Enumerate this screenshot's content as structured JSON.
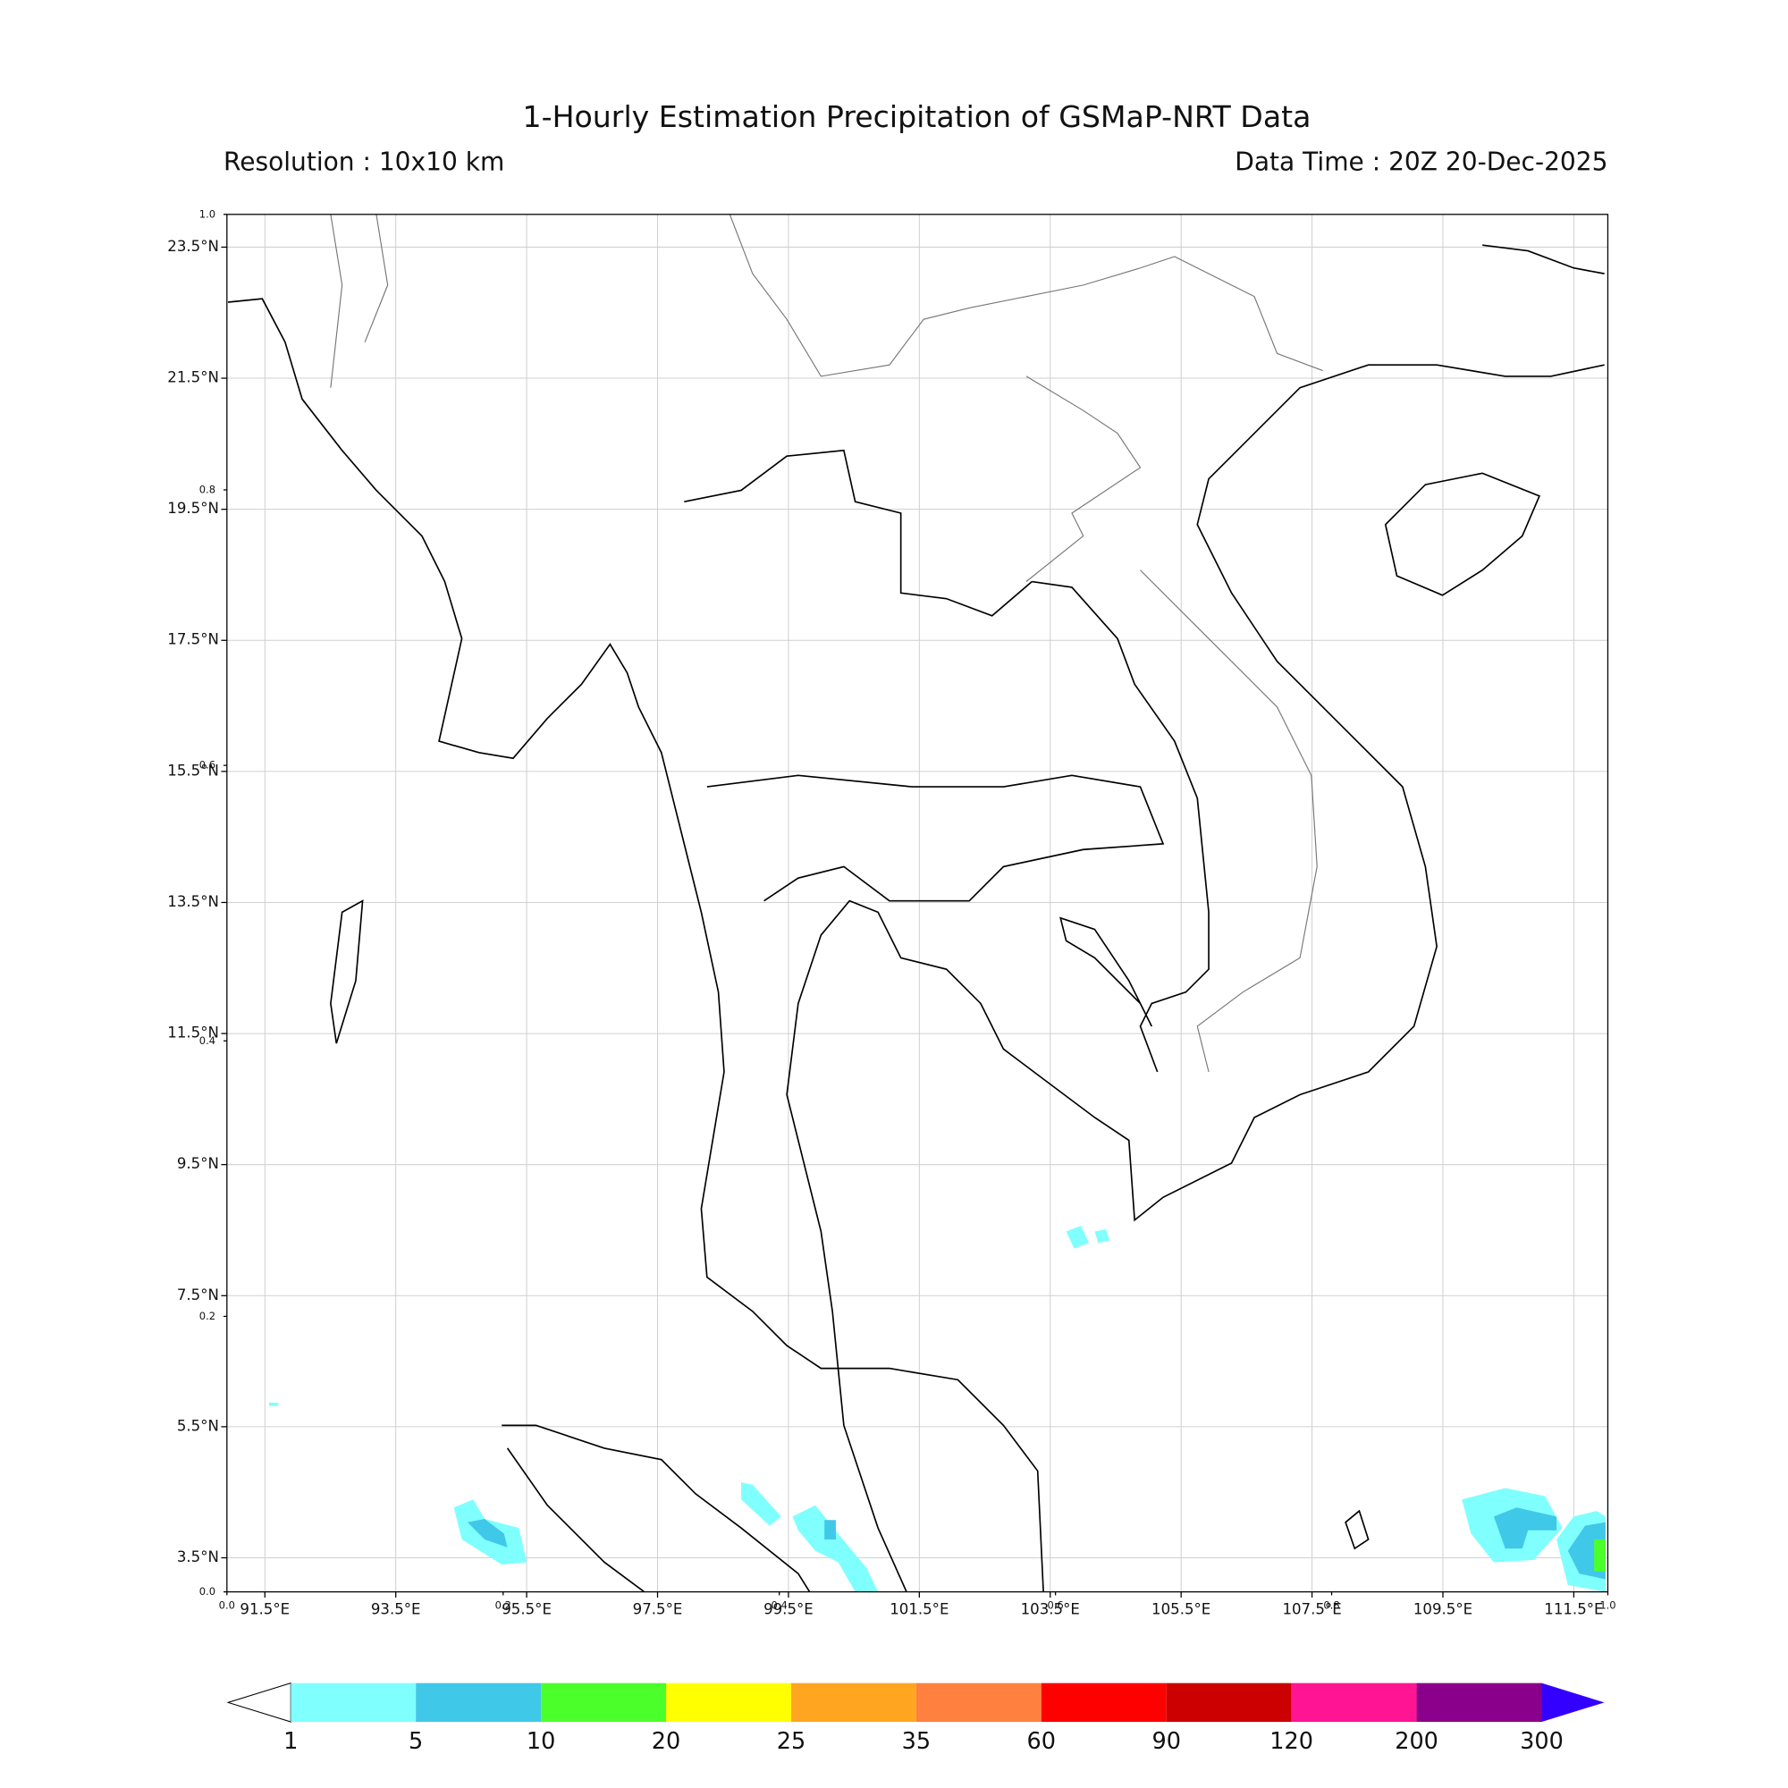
{
  "header": {
    "title": "1-Hourly Estimation Precipitation of GSMaP-NRT Data",
    "resolution": "Resolution : 10x10 km",
    "data_time": "Data Time : 20Z 20-Dec-2025"
  },
  "map": {
    "lon_range": [
      90.92,
      112.02
    ],
    "lat_range": [
      2.98,
      24.0
    ],
    "lon_ticks": [
      {
        "value": 91.5,
        "label": "91.5°E"
      },
      {
        "value": 93.5,
        "label": "93.5°E"
      },
      {
        "value": 95.5,
        "label": "95.5°E"
      },
      {
        "value": 97.5,
        "label": "97.5°E"
      },
      {
        "value": 99.5,
        "label": "99.5°E"
      },
      {
        "value": 101.5,
        "label": "101.5°E"
      },
      {
        "value": 103.5,
        "label": "103.5°E"
      },
      {
        "value": 105.5,
        "label": "105.5°E"
      },
      {
        "value": 107.5,
        "label": "107.5°E"
      },
      {
        "value": 109.5,
        "label": "109.5°E"
      },
      {
        "value": 111.5,
        "label": "111.5°E"
      }
    ],
    "lat_ticks": [
      {
        "value": 23.5,
        "label": "23.5°N"
      },
      {
        "value": 21.5,
        "label": "21.5°N"
      },
      {
        "value": 19.5,
        "label": "19.5°N"
      },
      {
        "value": 17.5,
        "label": "17.5°N"
      },
      {
        "value": 15.5,
        "label": "15.5°N"
      },
      {
        "value": 13.5,
        "label": "13.5°N"
      },
      {
        "value": 11.5,
        "label": "11.5°N"
      },
      {
        "value": 9.5,
        "label": "9.5°N"
      },
      {
        "value": 7.5,
        "label": "7.5°N"
      },
      {
        "value": 5.5,
        "label": "5.5°N"
      },
      {
        "value": 3.5,
        "label": "3.5°N"
      }
    ],
    "frame_ticks": [
      {
        "value": 0,
        "label": "0.0"
      },
      {
        "value": 0.2,
        "label": "0.2"
      },
      {
        "value": 0.4,
        "label": "0.4"
      },
      {
        "value": 0.6,
        "label": "0.6"
      },
      {
        "value": 0.8,
        "label": "0.8"
      },
      {
        "value": 1,
        "label": "1.0"
      }
    ]
  },
  "colorbar": {
    "levels": [
      1,
      5,
      10,
      20,
      25,
      35,
      60,
      90,
      120,
      200,
      300
    ],
    "colors": [
      "#80ffff",
      "#40c8e8",
      "#4bff2b",
      "#ffff00",
      "#ffa520",
      "#ff803f",
      "#ff0000",
      "#cc0000",
      "#ff1493",
      "#8b008b",
      "#3300ff"
    ]
  }
}
